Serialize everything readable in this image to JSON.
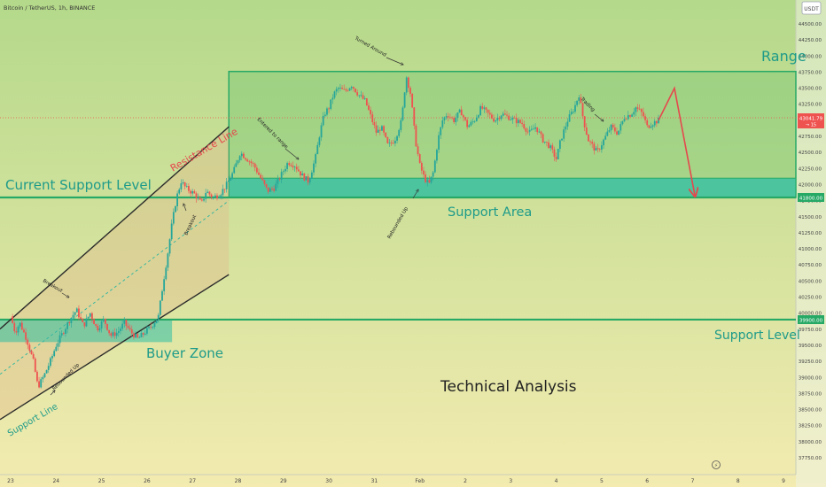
{
  "header": {
    "title": "Bitcoin / TetherUS, 1h, BINANCE"
  },
  "axis_badge": "USDT",
  "price_tags": {
    "current_price": "43041.79",
    "current_sub": "→ 15",
    "support_price": "41800.00",
    "lower_price": "39900.00"
  },
  "annotations": {
    "range": "Range",
    "current_support": "Current Support Level",
    "support_area": "Support Area",
    "support_level": "Support Level",
    "resistance_line": "Resistance Line",
    "buyer_zone": "Buyer Zone",
    "support_line": "Support Line",
    "technical_analysis": "Technical Analysis",
    "turned_around": "Turned Around",
    "entered_to_range": "Entered to range",
    "trading": "Trading",
    "rebounded_up_1": "Rebounded Up",
    "rebounded_up_2": "Rebounded Up",
    "breakout_1": "Breakout",
    "breakout_2": "Breakout"
  },
  "colors": {
    "background_top": "#b4d98a",
    "background_bottom": "#f3ebb0",
    "up_candle": "#26a69a",
    "down_candle": "#ef5350",
    "support_green": "#27a966",
    "range_fill": "#6cc36f",
    "support_area_fill": "#2ebea6",
    "arrow_red": "#e5484d",
    "annotation_teal": "#1e9b8a",
    "text_dark": "#222222"
  },
  "chart_data": {
    "type": "candlestick",
    "title": "Bitcoin / TetherUS, 1h, BINANCE",
    "x_ticks": [
      "23",
      "24",
      "25",
      "26",
      "27",
      "28",
      "29",
      "30",
      "31",
      "Feb",
      "2",
      "3",
      "4",
      "5",
      "6",
      "7",
      "8",
      "9"
    ],
    "y_ticks": [
      37750,
      38000,
      38250,
      38500,
      38750,
      39000,
      39250,
      39500,
      39750,
      40000,
      40250,
      40500,
      40750,
      41000,
      41250,
      41500,
      41750,
      42000,
      42250,
      42500,
      42750,
      43000,
      43250,
      43500,
      43750,
      44000,
      44250,
      44500
    ],
    "ylim": [
      37650,
      44730
    ],
    "close_path": [
      [
        23.0,
        39950
      ],
      [
        23.1,
        39700
      ],
      [
        23.2,
        39850
      ],
      [
        23.35,
        39600
      ],
      [
        23.5,
        39250
      ],
      [
        23.6,
        38850
      ],
      [
        23.75,
        39050
      ],
      [
        23.9,
        39300
      ],
      [
        24.0,
        39500
      ],
      [
        24.15,
        39700
      ],
      [
        24.3,
        39900
      ],
      [
        24.45,
        40050
      ],
      [
        24.6,
        39800
      ],
      [
        24.75,
        40000
      ],
      [
        24.9,
        39750
      ],
      [
        25.05,
        39900
      ],
      [
        25.2,
        39650
      ],
      [
        25.35,
        39700
      ],
      [
        25.5,
        39850
      ],
      [
        25.65,
        39700
      ],
      [
        25.8,
        39600
      ],
      [
        25.95,
        39700
      ],
      [
        26.1,
        39800
      ],
      [
        26.25,
        39950
      ],
      [
        26.35,
        40450
      ],
      [
        26.45,
        40900
      ],
      [
        26.55,
        41400
      ],
      [
        26.65,
        41800
      ],
      [
        26.75,
        42050
      ],
      [
        26.85,
        41950
      ],
      [
        26.95,
        41900
      ],
      [
        27.05,
        41850
      ],
      [
        27.2,
        41700
      ],
      [
        27.3,
        41900
      ],
      [
        27.45,
        41800
      ],
      [
        27.6,
        41850
      ],
      [
        27.75,
        42000
      ],
      [
        27.9,
        42200
      ],
      [
        28.05,
        42500
      ],
      [
        28.2,
        42400
      ],
      [
        28.35,
        42300
      ],
      [
        28.5,
        42100
      ],
      [
        28.65,
        41900
      ],
      [
        28.8,
        41950
      ],
      [
        28.95,
        42150
      ],
      [
        29.1,
        42350
      ],
      [
        29.25,
        42300
      ],
      [
        29.4,
        42150
      ],
      [
        29.55,
        42050
      ],
      [
        29.7,
        42400
      ],
      [
        29.8,
        42800
      ],
      [
        29.9,
        43100
      ],
      [
        30.0,
        43200
      ],
      [
        30.1,
        43400
      ],
      [
        30.2,
        43500
      ],
      [
        30.35,
        43450
      ],
      [
        30.5,
        43550
      ],
      [
        30.65,
        43400
      ],
      [
        30.8,
        43300
      ],
      [
        30.95,
        43000
      ],
      [
        31.05,
        42800
      ],
      [
        31.15,
        42900
      ],
      [
        31.3,
        42600
      ],
      [
        31.45,
        42700
      ],
      [
        31.6,
        43000
      ],
      [
        31.7,
        43700
      ],
      [
        31.8,
        43400
      ],
      [
        31.9,
        42700
      ],
      [
        32.0,
        42300
      ],
      [
        32.1,
        42100
      ],
      [
        32.2,
        42000
      ],
      [
        32.3,
        42200
      ],
      [
        32.4,
        42700
      ],
      [
        32.5,
        43000
      ],
      [
        32.6,
        43100
      ],
      [
        32.75,
        43000
      ],
      [
        32.9,
        43150
      ],
      [
        33.05,
        42900
      ],
      [
        33.2,
        43000
      ],
      [
        33.35,
        43200
      ],
      [
        33.5,
        43100
      ],
      [
        33.65,
        43000
      ],
      [
        33.8,
        43100
      ],
      [
        33.95,
        43050
      ],
      [
        34.1,
        43000
      ],
      [
        34.25,
        42950
      ],
      [
        34.4,
        42800
      ],
      [
        34.55,
        42900
      ],
      [
        34.7,
        42700
      ],
      [
        34.85,
        42600
      ],
      [
        35.0,
        42400
      ],
      [
        35.1,
        42700
      ],
      [
        35.25,
        43000
      ],
      [
        35.4,
        43200
      ],
      [
        35.5,
        43400
      ],
      [
        35.6,
        43000
      ],
      [
        35.7,
        42700
      ],
      [
        35.8,
        42600
      ],
      [
        35.9,
        42500
      ],
      [
        36.05,
        42700
      ],
      [
        36.2,
        42900
      ],
      [
        36.35,
        42800
      ],
      [
        36.5,
        43050
      ],
      [
        36.65,
        43100
      ],
      [
        36.75,
        43200
      ],
      [
        36.9,
        43100
      ],
      [
        37.0,
        42900
      ],
      [
        37.1,
        42950
      ],
      [
        37.25,
        43000
      ]
    ],
    "projection": [
      [
        37.25,
        43000
      ],
      [
        37.6,
        43500
      ],
      [
        38.05,
        41830
      ]
    ],
    "annotations": {
      "range_box_price": [
        41800,
        43760
      ],
      "support_area_price": [
        41800,
        42100
      ],
      "current_support_level": 41800,
      "support_level": 39900,
      "buyer_zone_price": [
        39550,
        39900
      ],
      "channel_resistance": [
        [
          23.0,
          39900
        ],
        [
          27.8,
          42900
        ]
      ],
      "channel_support": [
        [
          23.0,
          38450
        ],
        [
          27.8,
          40600
        ]
      ]
    }
  }
}
